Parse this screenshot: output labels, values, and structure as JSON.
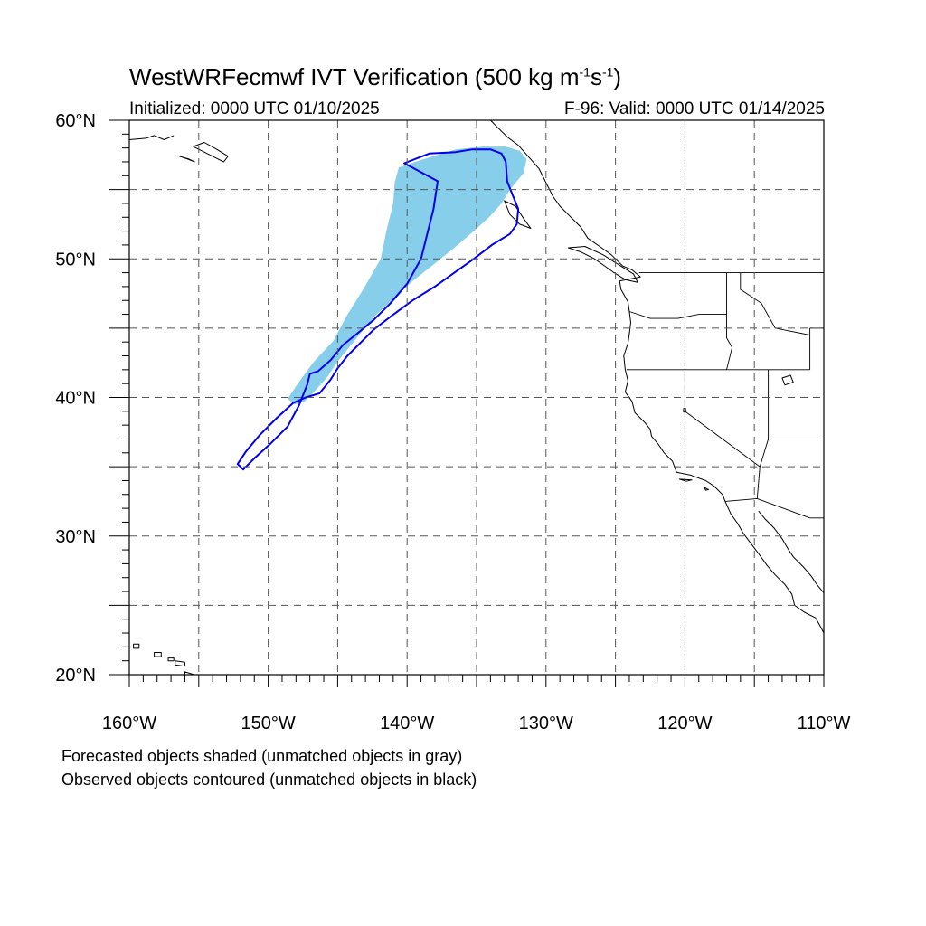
{
  "title": {
    "prefix": "WestWRFecmwf IVT Verification (500 kg m",
    "sup1": "-1",
    "mid": "s",
    "sup2": "-1",
    "suffix": ")"
  },
  "initialized": "Initialized: 0000 UTC 01/10/2025",
  "valid": "F-96: Valid: 0000 UTC 01/14/2025",
  "footnotes": [
    "Forecasted objects shaded (unmatched objects in gray)",
    "Observed objects contoured (unmatched objects in black)"
  ],
  "map": {
    "lon_range": [
      -160,
      -110
    ],
    "lat_range": [
      20,
      60
    ],
    "grid": "dashed",
    "lon_tick_labels": [
      {
        "lon": -160,
        "label": "160°W"
      },
      {
        "lon": -150,
        "label": "150°W"
      },
      {
        "lon": -140,
        "label": "140°W"
      },
      {
        "lon": -130,
        "label": "130°W"
      },
      {
        "lon": -120,
        "label": "120°W"
      },
      {
        "lon": -110,
        "label": "110°W"
      }
    ],
    "lat_tick_labels": [
      {
        "lat": 60,
        "label": "60°N"
      },
      {
        "lat": 50,
        "label": "50°N"
      },
      {
        "lat": 40,
        "label": "40°N"
      },
      {
        "lat": 30,
        "label": "30°N"
      },
      {
        "lat": 20,
        "label": "20°N"
      }
    ],
    "colors": {
      "forecast_fill": "#87CEEB",
      "observed_contour": "#0000EE",
      "coastline": "#000000",
      "grid": "#555555"
    },
    "forecast_object": [
      [
        -139.1,
        57.1
      ],
      [
        -136.5,
        57.9
      ],
      [
        -134.5,
        58.1
      ],
      [
        -132.9,
        58.1
      ],
      [
        -131.9,
        57.8
      ],
      [
        -131.4,
        57.2
      ],
      [
        -131.6,
        56.2
      ],
      [
        -132.6,
        55.0
      ],
      [
        -133.2,
        54.0
      ],
      [
        -134.1,
        53.0
      ],
      [
        -135.2,
        52.0
      ],
      [
        -136.6,
        50.8
      ],
      [
        -138.2,
        49.5
      ],
      [
        -139.6,
        48.4
      ],
      [
        -141.0,
        47.1
      ],
      [
        -142.3,
        45.9
      ],
      [
        -143.3,
        44.7
      ],
      [
        -144.1,
        43.7
      ],
      [
        -145.0,
        42.6
      ],
      [
        -145.8,
        41.4
      ],
      [
        -146.7,
        40.4
      ],
      [
        -147.4,
        39.7
      ],
      [
        -148.1,
        39.5
      ],
      [
        -148.6,
        39.9
      ],
      [
        -147.8,
        41.1
      ],
      [
        -146.7,
        42.6
      ],
      [
        -145.3,
        44.1
      ],
      [
        -144.4,
        45.8
      ],
      [
        -143.1,
        47.9
      ],
      [
        -141.9,
        50.0
      ],
      [
        -141.5,
        52.0
      ],
      [
        -141.0,
        54.0
      ],
      [
        -140.9,
        55.5
      ],
      [
        -140.6,
        56.6
      ]
    ],
    "observed_object": [
      [
        -140.2,
        56.9
      ],
      [
        -138.4,
        57.6
      ],
      [
        -136.5,
        57.7
      ],
      [
        -135.3,
        57.9
      ],
      [
        -134.0,
        57.9
      ],
      [
        -133.2,
        57.6
      ],
      [
        -132.9,
        57.0
      ],
      [
        -132.8,
        55.6
      ],
      [
        -132.4,
        54.6
      ],
      [
        -132.0,
        53.6
      ],
      [
        -132.1,
        52.5
      ],
      [
        -132.6,
        51.8
      ],
      [
        -133.9,
        51.0
      ],
      [
        -135.2,
        50.0
      ],
      [
        -136.6,
        49.0
      ],
      [
        -138.0,
        48.0
      ],
      [
        -139.6,
        47.0
      ],
      [
        -141.1,
        45.9
      ],
      [
        -142.4,
        44.9
      ],
      [
        -143.4,
        43.9
      ],
      [
        -144.3,
        43.0
      ],
      [
        -145.0,
        42.1
      ],
      [
        -145.5,
        41.3
      ],
      [
        -146.3,
        40.3
      ],
      [
        -147.3,
        40.0
      ],
      [
        -148.2,
        39.6
      ],
      [
        -149.4,
        38.5
      ],
      [
        -150.6,
        37.3
      ],
      [
        -151.6,
        36.1
      ],
      [
        -152.2,
        35.2
      ],
      [
        -151.8,
        34.8
      ],
      [
        -151.0,
        35.6
      ],
      [
        -149.8,
        36.7
      ],
      [
        -148.6,
        37.9
      ],
      [
        -147.8,
        39.4
      ],
      [
        -147.2,
        40.9
      ],
      [
        -147.0,
        41.7
      ],
      [
        -146.4,
        41.9
      ],
      [
        -145.5,
        42.7
      ],
      [
        -144.6,
        43.8
      ],
      [
        -143.6,
        44.6
      ],
      [
        -142.4,
        45.6
      ],
      [
        -141.2,
        46.8
      ],
      [
        -140.0,
        48.2
      ],
      [
        -139.0,
        50.0
      ],
      [
        -138.6,
        51.6
      ],
      [
        -138.1,
        53.6
      ],
      [
        -137.8,
        55.6
      ]
    ],
    "coastline_na": [
      [
        -134.0,
        60.0
      ],
      [
        -133.5,
        59.5
      ],
      [
        -132.8,
        58.8
      ],
      [
        -132.0,
        58.2
      ],
      [
        -131.2,
        57.3
      ],
      [
        -130.5,
        56.5
      ],
      [
        -130.0,
        55.5
      ],
      [
        -129.5,
        54.5
      ],
      [
        -129.0,
        53.8
      ],
      [
        -128.2,
        53.0
      ],
      [
        -127.5,
        52.3
      ],
      [
        -127.0,
        51.5
      ],
      [
        -126.0,
        50.8
      ],
      [
        -125.3,
        50.3
      ],
      [
        -124.5,
        49.5
      ],
      [
        -123.8,
        49.2
      ],
      [
        -123.2,
        48.7
      ],
      [
        -124.7,
        48.4
      ],
      [
        -124.6,
        47.8
      ],
      [
        -124.1,
        46.9
      ],
      [
        -124.0,
        46.2
      ],
      [
        -123.9,
        45.4
      ],
      [
        -124.0,
        44.6
      ],
      [
        -124.1,
        43.9
      ],
      [
        -124.4,
        43.0
      ],
      [
        -124.3,
        42.0
      ],
      [
        -124.1,
        41.2
      ],
      [
        -124.3,
        40.4
      ],
      [
        -123.8,
        39.7
      ],
      [
        -123.6,
        38.9
      ],
      [
        -122.9,
        38.2
      ],
      [
        -122.5,
        37.7
      ],
      [
        -122.4,
        37.2
      ],
      [
        -121.9,
        36.6
      ],
      [
        -121.5,
        36.0
      ],
      [
        -120.9,
        35.4
      ],
      [
        -120.6,
        34.6
      ],
      [
        -119.6,
        34.4
      ],
      [
        -118.5,
        34.0
      ],
      [
        -117.9,
        33.6
      ],
      [
        -117.3,
        33.0
      ],
      [
        -117.1,
        32.5
      ],
      [
        -116.7,
        31.6
      ],
      [
        -116.2,
        30.9
      ],
      [
        -115.8,
        30.2
      ],
      [
        -115.2,
        29.4
      ],
      [
        -114.6,
        28.6
      ],
      [
        -114.1,
        27.9
      ],
      [
        -113.5,
        27.2
      ],
      [
        -112.8,
        26.5
      ],
      [
        -112.3,
        25.8
      ],
      [
        -112.1,
        25.0
      ],
      [
        -111.4,
        24.5
      ],
      [
        -110.6,
        24.1
      ],
      [
        -110.2,
        23.4
      ],
      [
        -110.0,
        23.0
      ]
    ],
    "gulf_coast": [
      [
        -114.7,
        31.8
      ],
      [
        -114.2,
        31.2
      ],
      [
        -113.6,
        30.6
      ],
      [
        -113.0,
        29.8
      ],
      [
        -112.6,
        29.1
      ],
      [
        -112.2,
        28.5
      ],
      [
        -111.5,
        27.8
      ],
      [
        -110.9,
        27.1
      ],
      [
        -110.5,
        26.5
      ],
      [
        -110.0,
        25.9
      ]
    ],
    "alaska_coast": [
      [
        -160.0,
        58.6
      ],
      [
        -158.8,
        58.7
      ],
      [
        -158.2,
        58.9
      ],
      [
        -157.5,
        58.6
      ],
      [
        -156.8,
        58.9
      ]
    ],
    "aleutian_islands": [
      [
        [
          -155.4,
          58.1
        ],
        [
          -154.6,
          57.7
        ],
        [
          -153.8,
          57.3
        ],
        [
          -153.2,
          57.0
        ],
        [
          -152.9,
          57.4
        ],
        [
          -153.7,
          57.9
        ],
        [
          -154.6,
          58.4
        ],
        [
          -155.4,
          58.1
        ]
      ],
      [
        [
          -156.4,
          57.4
        ],
        [
          -155.8,
          57.2
        ],
        [
          -155.3,
          57.0
        ],
        [
          -155.7,
          57.2
        ],
        [
          -156.4,
          57.4
        ]
      ]
    ],
    "hawaii_islands": [
      [
        [
          -159.7,
          22.2
        ],
        [
          -159.3,
          22.2
        ],
        [
          -159.3,
          21.9
        ],
        [
          -159.7,
          21.9
        ],
        [
          -159.7,
          22.2
        ]
      ],
      [
        [
          -158.2,
          21.6
        ],
        [
          -157.7,
          21.6
        ],
        [
          -157.7,
          21.3
        ],
        [
          -158.2,
          21.3
        ],
        [
          -158.2,
          21.6
        ]
      ],
      [
        [
          -157.2,
          21.2
        ],
        [
          -156.8,
          21.2
        ],
        [
          -156.8,
          21.0
        ],
        [
          -157.2,
          21.0
        ],
        [
          -157.2,
          21.2
        ]
      ],
      [
        [
          -156.7,
          21.0
        ],
        [
          -156.0,
          20.9
        ],
        [
          -156.0,
          20.6
        ],
        [
          -156.7,
          20.7
        ],
        [
          -156.7,
          21.0
        ]
      ],
      [
        [
          -156.0,
          20.2
        ],
        [
          -155.0,
          19.9
        ],
        [
          -154.8,
          19.5
        ],
        [
          -155.7,
          18.9
        ],
        [
          -156.0,
          19.7
        ],
        [
          -156.0,
          20.2
        ]
      ]
    ],
    "vancouver_island": [
      [
        -128.4,
        50.8
      ],
      [
        -127.5,
        50.5
      ],
      [
        -126.5,
        50.0
      ],
      [
        -125.8,
        49.5
      ],
      [
        -125.1,
        49.0
      ],
      [
        -124.3,
        48.5
      ],
      [
        -123.4,
        48.3
      ],
      [
        -123.7,
        48.9
      ],
      [
        -124.8,
        49.6
      ],
      [
        -125.9,
        50.3
      ],
      [
        -127.2,
        50.9
      ],
      [
        -128.4,
        50.8
      ]
    ],
    "haida_gwaii": [
      [
        -133.0,
        54.2
      ],
      [
        -132.2,
        53.8
      ],
      [
        -131.6,
        52.9
      ],
      [
        -131.1,
        52.2
      ],
      [
        -131.9,
        52.5
      ],
      [
        -132.6,
        53.2
      ],
      [
        -133.0,
        54.2
      ]
    ],
    "channel_islands": [
      [
        [
          -120.4,
          34.1
        ],
        [
          -119.5,
          34.05
        ],
        [
          -119.9,
          33.95
        ],
        [
          -120.4,
          34.1
        ]
      ],
      [
        [
          -118.6,
          33.5
        ],
        [
          -118.3,
          33.35
        ],
        [
          -118.5,
          33.3
        ],
        [
          -118.6,
          33.5
        ]
      ]
    ],
    "state_borders": [
      [
        [
          -123.3,
          49.0
        ],
        [
          -110.0,
          49.0
        ]
      ],
      [
        [
          -124.2,
          42.0
        ],
        [
          -111.0,
          42.0
        ]
      ],
      [
        [
          -124.0,
          46.2
        ],
        [
          -122.5,
          45.7
        ],
        [
          -120.5,
          45.7
        ],
        [
          -119.0,
          46.0
        ],
        [
          -117.0,
          46.0
        ]
      ],
      [
        [
          -117.0,
          49.0
        ],
        [
          -117.0,
          44.3
        ],
        [
          -116.6,
          43.6
        ],
        [
          -117.0,
          42.0
        ]
      ],
      [
        [
          -120.0,
          42.0
        ],
        [
          -120.0,
          39.0
        ],
        [
          -114.6,
          35.0
        ]
      ],
      [
        [
          -116.0,
          49.0
        ],
        [
          -116.0,
          47.8
        ],
        [
          -114.5,
          46.8
        ],
        [
          -113.5,
          45.0
        ],
        [
          -111.0,
          44.5
        ]
      ],
      [
        [
          -114.0,
          42.0
        ],
        [
          -114.0,
          37.0
        ],
        [
          -114.6,
          35.0
        ],
        [
          -114.8,
          32.7
        ]
      ],
      [
        [
          -117.1,
          32.5
        ],
        [
          -114.8,
          32.7
        ],
        [
          -111.0,
          31.3
        ],
        [
          -110.0,
          31.3
        ]
      ],
      [
        [
          -111.0,
          45.0
        ],
        [
          -111.0,
          42.0
        ]
      ],
      [
        [
          -110.0,
          37.0
        ],
        [
          -114.0,
          37.0
        ]
      ],
      [
        [
          -110.0,
          45.0
        ],
        [
          -111.0,
          45.0
        ]
      ]
    ],
    "lakes": [
      [
        [
          -113.0,
          41.4
        ],
        [
          -112.4,
          41.6
        ],
        [
          -112.2,
          41.1
        ],
        [
          -112.8,
          40.9
        ],
        [
          -113.0,
          41.4
        ]
      ],
      [
        [
          -120.1,
          39.2
        ],
        [
          -119.95,
          39.2
        ],
        [
          -119.95,
          38.95
        ],
        [
          -120.1,
          38.95
        ],
        [
          -120.1,
          39.2
        ]
      ]
    ]
  }
}
